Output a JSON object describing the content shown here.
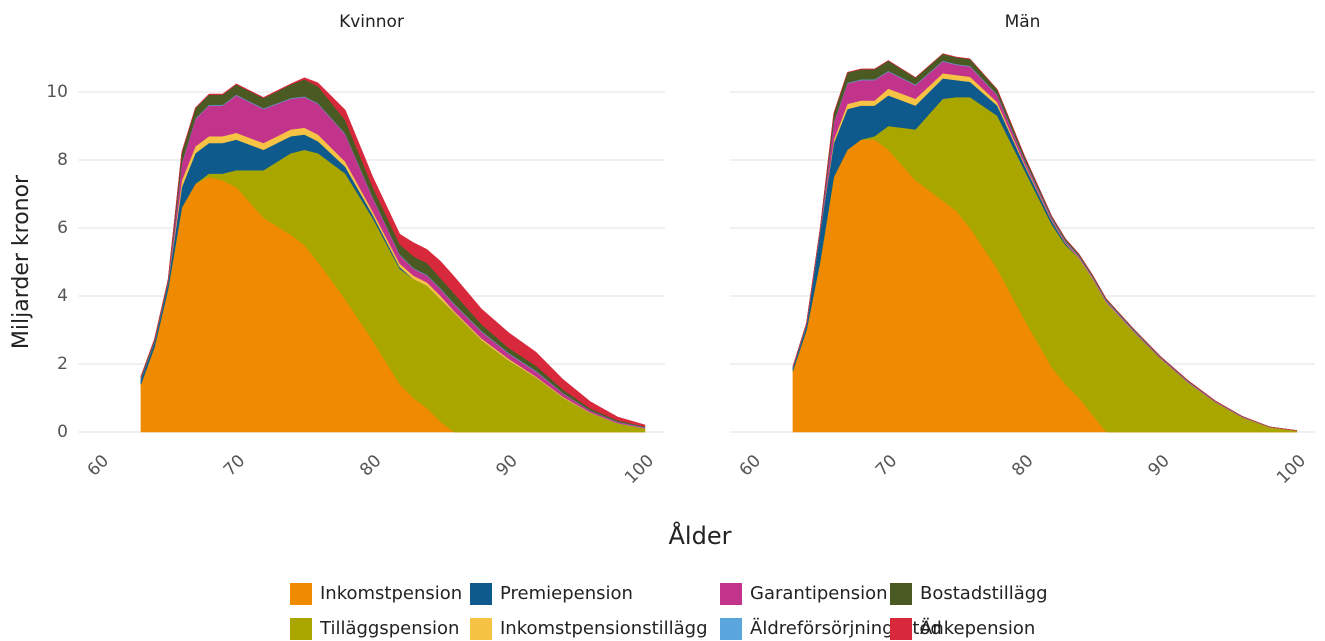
{
  "chart_data": [
    {
      "type": "area",
      "title": "Kvinnor",
      "ylabel": "Miljarder kronor",
      "xlabel": "Ålder",
      "x": [
        63,
        64,
        65,
        66,
        67,
        68,
        69,
        70,
        72,
        74,
        75,
        76,
        78,
        80,
        82,
        83,
        84,
        85,
        86,
        88,
        90,
        92,
        94,
        96,
        98,
        100
      ],
      "xlim": [
        60,
        100
      ],
      "xticks": [
        60,
        70,
        80,
        90,
        100
      ],
      "ylim": [
        0,
        11
      ],
      "yticks": [
        0,
        2,
        4,
        6,
        8,
        10
      ],
      "grid": true,
      "series": [
        {
          "name": "Inkomstpension",
          "color": "#f08a00",
          "values": [
            1.4,
            2.5,
            4.2,
            6.6,
            7.3,
            7.5,
            7.4,
            7.2,
            6.3,
            5.8,
            5.5,
            5.0,
            3.9,
            2.7,
            1.4,
            1.0,
            0.7,
            0.3,
            0,
            0,
            0,
            0,
            0,
            0,
            0,
            0
          ]
        },
        {
          "name": "Tilläggspension",
          "color": "#aaa600",
          "values": [
            0,
            0,
            0,
            0,
            0,
            0.1,
            0.2,
            0.5,
            1.4,
            2.4,
            2.8,
            3.2,
            3.7,
            3.6,
            3.4,
            3.5,
            3.6,
            3.6,
            3.5,
            2.7,
            2.1,
            1.6,
            1.0,
            0.55,
            0.25,
            0.1
          ]
        },
        {
          "name": "Premiepension",
          "color": "#0f5a8c",
          "values": [
            0.15,
            0.15,
            0.2,
            0.6,
            0.9,
            0.9,
            0.9,
            0.9,
            0.6,
            0.5,
            0.45,
            0.35,
            0.2,
            0.1,
            0.05,
            0,
            0,
            0,
            0,
            0,
            0,
            0,
            0,
            0,
            0,
            0
          ]
        },
        {
          "name": "Inkomstpensionstillägg",
          "color": "#f7c344",
          "values": [
            0,
            0,
            0,
            0.2,
            0.2,
            0.2,
            0.2,
            0.2,
            0.2,
            0.2,
            0.2,
            0.2,
            0.15,
            0.1,
            0.1,
            0.1,
            0.1,
            0.1,
            0.05,
            0.05,
            0.05,
            0.03,
            0.03,
            0.02,
            0.01,
            0.01
          ]
        },
        {
          "name": "Garantipension",
          "color": "#c2338c",
          "values": [
            0,
            0,
            0,
            0.5,
            0.8,
            0.9,
            0.9,
            1.1,
            1.0,
            0.9,
            0.9,
            0.9,
            0.8,
            0.4,
            0.25,
            0.2,
            0.2,
            0.2,
            0.2,
            0.2,
            0.15,
            0.15,
            0.1,
            0.05,
            0.03,
            0.02
          ]
        },
        {
          "name": "Äldreförsörjningsstöd",
          "color": "#5aa5dc",
          "values": [
            0.02,
            0.02,
            0.02,
            0.02,
            0.02,
            0.02,
            0.02,
            0.02,
            0.02,
            0.02,
            0.02,
            0.02,
            0.02,
            0.02,
            0.02,
            0.02,
            0.02,
            0.02,
            0.02,
            0.02,
            0.02,
            0.02,
            0.01,
            0.01,
            0.01,
            0.01
          ]
        },
        {
          "name": "Bostadstillägg",
          "color": "#4b5a23",
          "values": [
            0.05,
            0.05,
            0.05,
            0.3,
            0.3,
            0.3,
            0.3,
            0.3,
            0.3,
            0.4,
            0.5,
            0.5,
            0.4,
            0.3,
            0.3,
            0.35,
            0.35,
            0.3,
            0.3,
            0.2,
            0.15,
            0.15,
            0.1,
            0.06,
            0.04,
            0.02
          ]
        },
        {
          "name": "Änkepension",
          "color": "#d8283c",
          "values": [
            0.02,
            0.02,
            0.02,
            0.02,
            0.02,
            0.02,
            0.02,
            0.02,
            0.02,
            0.02,
            0.05,
            0.1,
            0.3,
            0.3,
            0.3,
            0.4,
            0.4,
            0.5,
            0.5,
            0.45,
            0.45,
            0.4,
            0.3,
            0.2,
            0.1,
            0.05
          ]
        }
      ]
    },
    {
      "type": "area",
      "title": "Män",
      "x": [
        63,
        64,
        65,
        66,
        67,
        68,
        69,
        70,
        72,
        74,
        75,
        76,
        78,
        80,
        82,
        83,
        84,
        85,
        86,
        88,
        90,
        92,
        94,
        96,
        98,
        100
      ],
      "xlim": [
        60,
        100
      ],
      "xticks": [
        60,
        70,
        80,
        90,
        100
      ],
      "ylim": [
        0,
        11
      ],
      "yticks": [
        0,
        2,
        4,
        6,
        8,
        10
      ],
      "grid": true,
      "series": [
        {
          "values": [
            1.8,
            3.0,
            5.0,
            7.5,
            8.3,
            8.6,
            8.6,
            8.3,
            7.4,
            6.8,
            6.5,
            6.0,
            4.8,
            3.3,
            1.9,
            1.4,
            1.0,
            0.5,
            0,
            0,
            0,
            0,
            0,
            0,
            0,
            0
          ]
        },
        {
          "values": [
            0,
            0,
            0,
            0,
            0,
            0,
            0.1,
            0.7,
            1.5,
            3.0,
            3.35,
            3.85,
            4.5,
            4.4,
            4.2,
            4.1,
            4.1,
            4.0,
            3.8,
            2.95,
            2.15,
            1.45,
            0.87,
            0.43,
            0.14,
            0.04
          ]
        },
        {
          "values": [
            0.1,
            0.15,
            0.9,
            1.0,
            1.2,
            1.0,
            0.9,
            0.9,
            0.7,
            0.6,
            0.5,
            0.45,
            0.3,
            0.15,
            0.1,
            0.05,
            0,
            0,
            0,
            0,
            0,
            0,
            0,
            0,
            0,
            0
          ]
        },
        {
          "values": [
            0,
            0,
            0,
            0.1,
            0.15,
            0.15,
            0.15,
            0.2,
            0.2,
            0.15,
            0.15,
            0.15,
            0.1,
            0.05,
            0.02,
            0.02,
            0.02,
            0.02,
            0.02,
            0.01,
            0.01,
            0.01,
            0.01,
            0,
            0,
            0
          ]
        },
        {
          "values": [
            0,
            0,
            0,
            0.5,
            0.6,
            0.6,
            0.6,
            0.5,
            0.4,
            0.35,
            0.3,
            0.3,
            0.2,
            0.1,
            0.05,
            0.04,
            0.04,
            0.03,
            0.03,
            0.02,
            0.02,
            0.02,
            0.01,
            0.01,
            0,
            0
          ]
        },
        {
          "values": [
            0.02,
            0.02,
            0.02,
            0.02,
            0.02,
            0.02,
            0.02,
            0.02,
            0.02,
            0.02,
            0.02,
            0.02,
            0.02,
            0.02,
            0.02,
            0.02,
            0.02,
            0.02,
            0.02,
            0.02,
            0.01,
            0.01,
            0.01,
            0.01,
            0.01,
            0
          ]
        },
        {
          "values": [
            0,
            0.03,
            0.05,
            0.25,
            0.3,
            0.3,
            0.3,
            0.3,
            0.2,
            0.2,
            0.2,
            0.2,
            0.15,
            0.1,
            0.05,
            0.05,
            0.05,
            0.04,
            0.04,
            0.03,
            0.02,
            0.02,
            0.01,
            0.01,
            0,
            0
          ]
        },
        {
          "values": [
            0.01,
            0.01,
            0.01,
            0.01,
            0.01,
            0.01,
            0.01,
            0.01,
            0.01,
            0.01,
            0.01,
            0.01,
            0.01,
            0.01,
            0.01,
            0.01,
            0.01,
            0.01,
            0.01,
            0.01,
            0.01,
            0.01,
            0.01,
            0,
            0,
            0
          ]
        }
      ]
    }
  ]
}
